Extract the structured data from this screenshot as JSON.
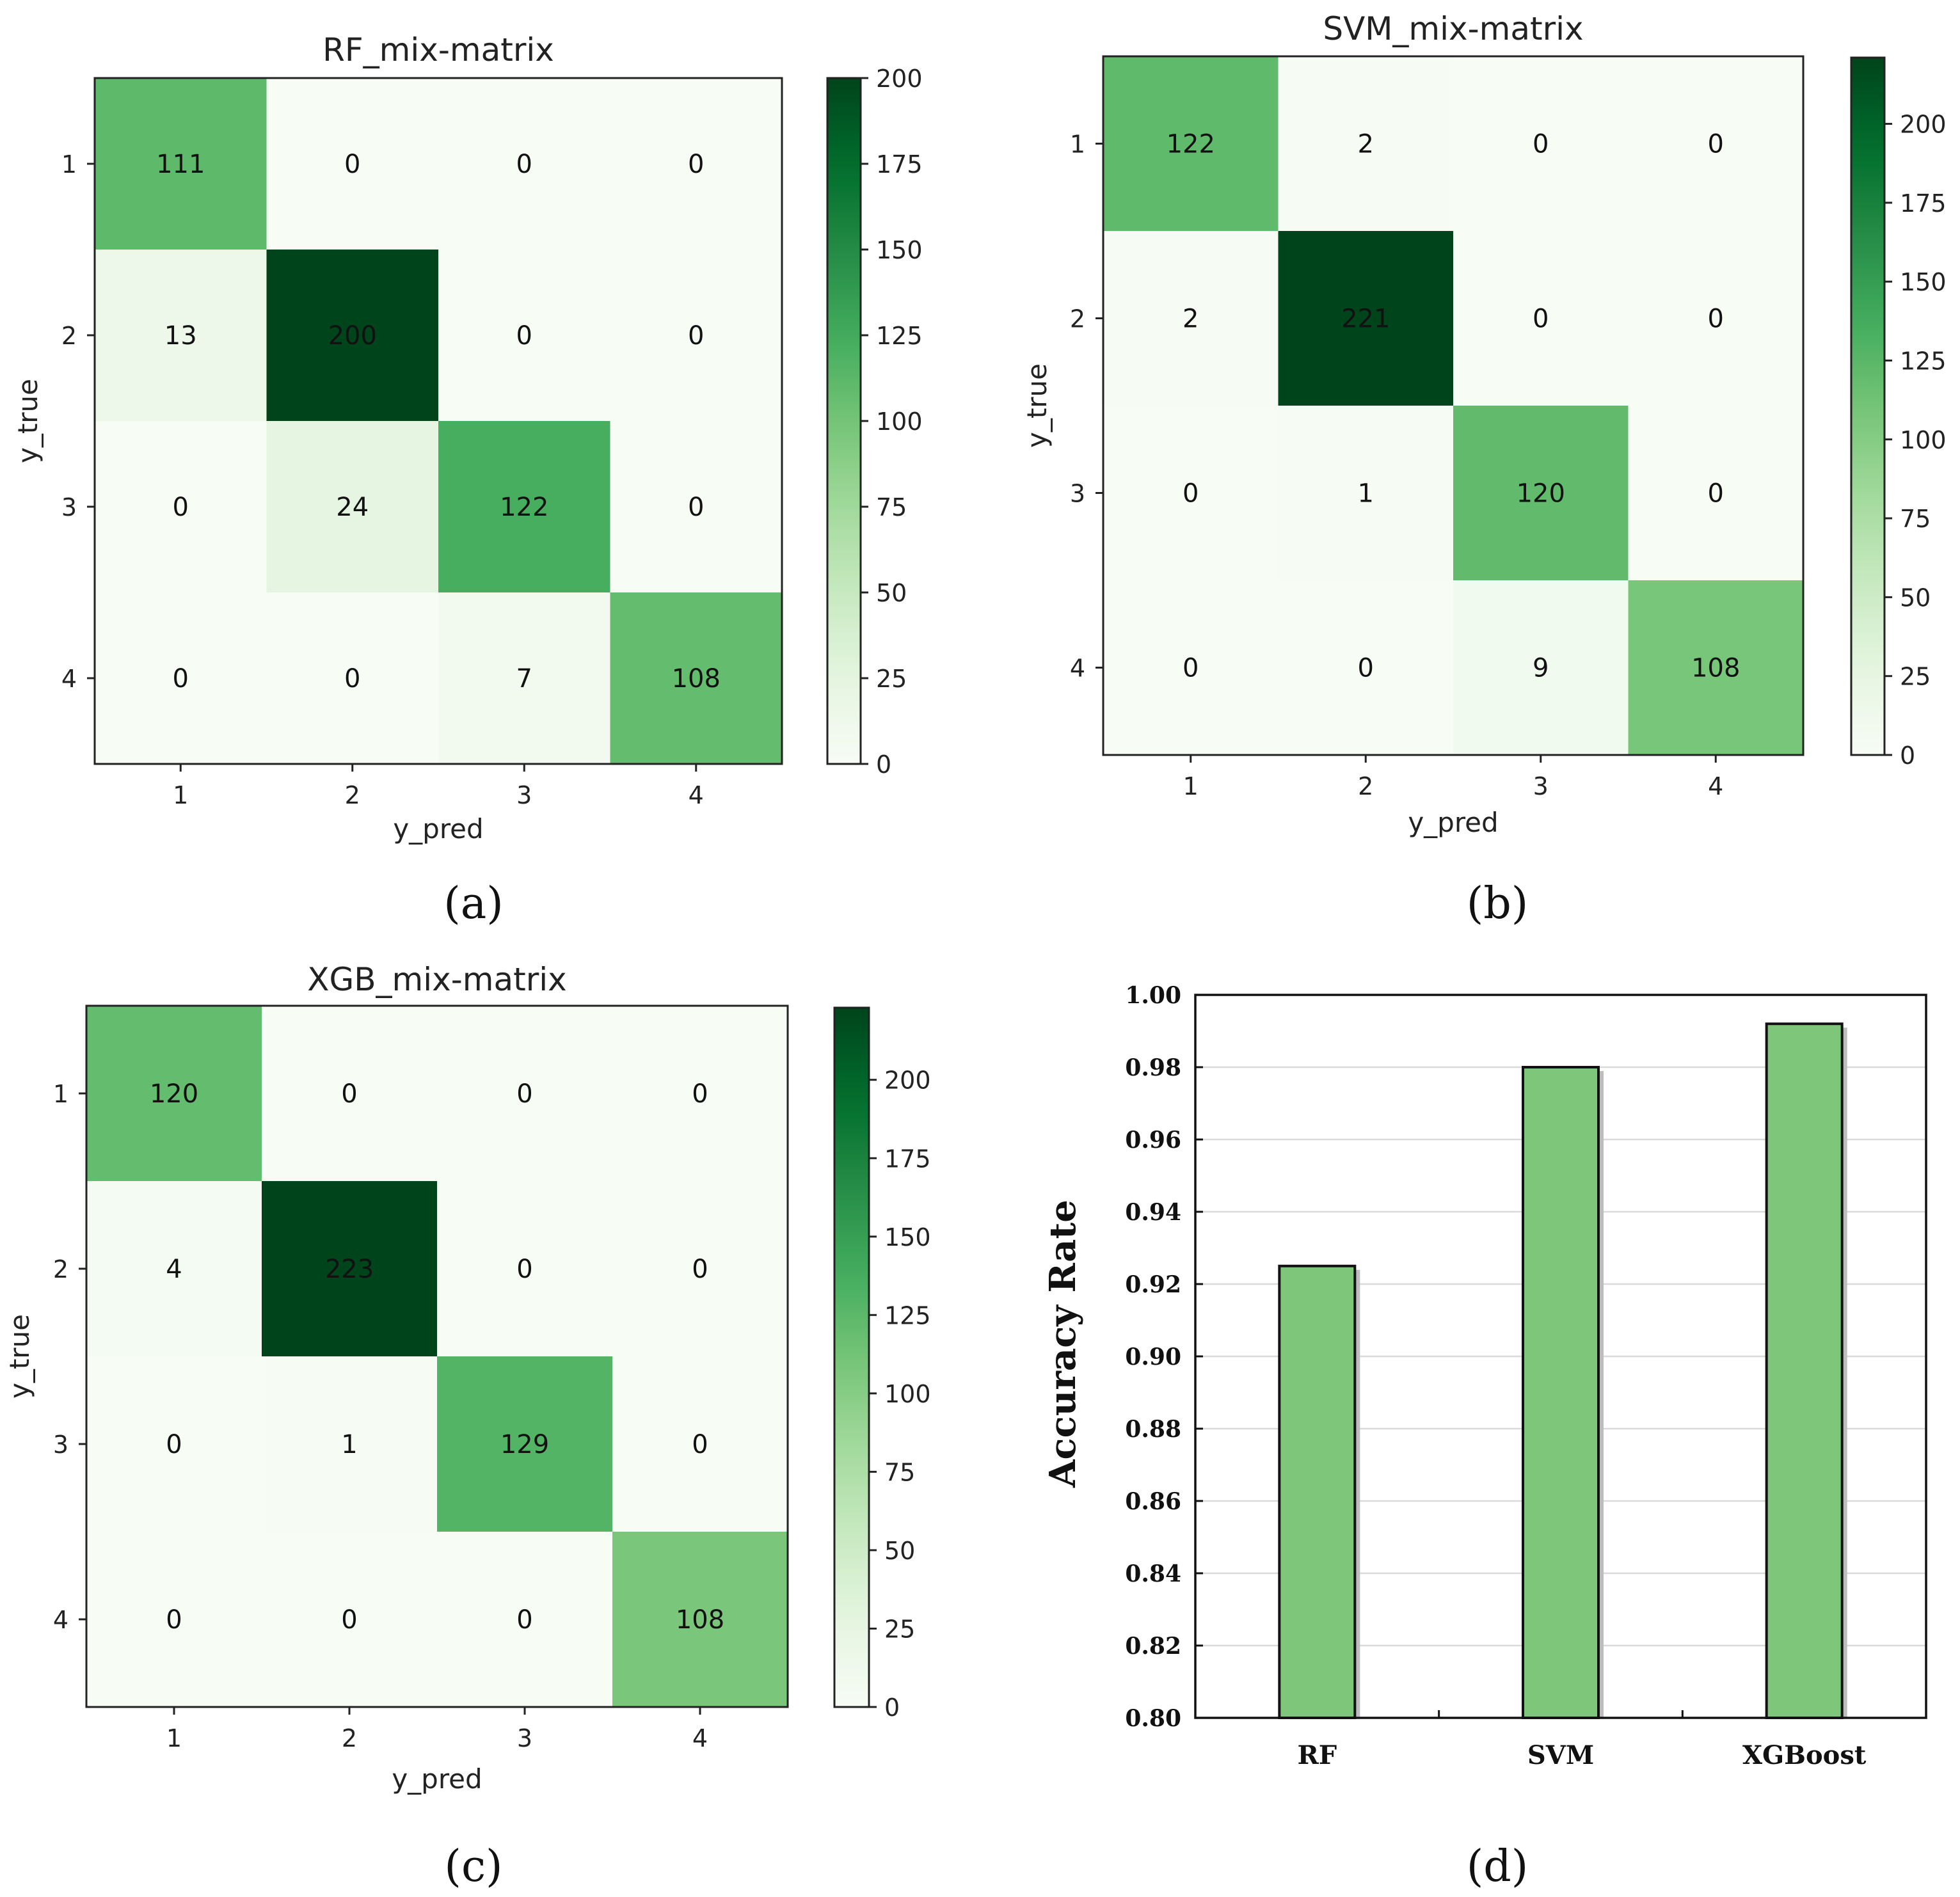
{
  "chart_data": [
    {
      "type": "heatmap",
      "title": "RF_mix-matrix",
      "xlabel": "y_pred",
      "ylabel": "y_true",
      "categories": [
        "1",
        "2",
        "3",
        "4"
      ],
      "matrix": [
        [
          111,
          0,
          0,
          0
        ],
        [
          13,
          200,
          0,
          0
        ],
        [
          0,
          24,
          122,
          0
        ],
        [
          0,
          0,
          7,
          108
        ]
      ],
      "color_min": 0,
      "color_max": 200,
      "colorbar_ticks": [
        0,
        25,
        50,
        75,
        100,
        125,
        150,
        175,
        200
      ],
      "caption": "(a)"
    },
    {
      "type": "heatmap",
      "title": "SVM_mix-matrix",
      "xlabel": "y_pred",
      "ylabel": "y_true",
      "categories": [
        "1",
        "2",
        "3",
        "4"
      ],
      "matrix": [
        [
          122,
          2,
          0,
          0
        ],
        [
          2,
          221,
          0,
          0
        ],
        [
          0,
          1,
          120,
          0
        ],
        [
          0,
          0,
          9,
          108
        ]
      ],
      "color_min": 0,
      "color_max": 221,
      "colorbar_ticks": [
        0,
        25,
        50,
        75,
        100,
        125,
        150,
        175,
        200
      ],
      "caption": "(b)"
    },
    {
      "type": "heatmap",
      "title": "XGB_mix-matrix",
      "xlabel": "y_pred",
      "ylabel": "y_true",
      "categories": [
        "1",
        "2",
        "3",
        "4"
      ],
      "matrix": [
        [
          120,
          0,
          0,
          0
        ],
        [
          4,
          223,
          0,
          0
        ],
        [
          0,
          1,
          129,
          0
        ],
        [
          0,
          0,
          0,
          108
        ]
      ],
      "color_min": 0,
      "color_max": 223,
      "colorbar_ticks": [
        0,
        25,
        50,
        75,
        100,
        125,
        150,
        175,
        200
      ],
      "caption": "(c)"
    },
    {
      "type": "bar",
      "title": "",
      "xlabel": "",
      "ylabel": "Accuracy  Rate",
      "categories": [
        "RF",
        "SVM",
        "XGBoost"
      ],
      "values": [
        0.925,
        0.98,
        0.992
      ],
      "ylim": [
        0.8,
        1.0
      ],
      "yticks": [
        "0.80",
        "0.82",
        "0.84",
        "0.86",
        "0.88",
        "0.90",
        "0.92",
        "0.94",
        "0.96",
        "0.98",
        "1.00"
      ],
      "grid": true,
      "bar_color": "#7dc67a",
      "caption": "(d)"
    }
  ],
  "colors": {
    "cmap_low": "#f7fcf5",
    "cmap_25": "#e5f5e0",
    "cmap_50": "#c7e9c0",
    "cmap_75": "#a1d99b",
    "cmap_100": "#74c476",
    "cmap_125": "#41ab5d",
    "cmap_150": "#238b45",
    "cmap_175": "#006d2c",
    "cmap_high": "#00441b",
    "bar_fill": "#7dc67a",
    "grid": "#d9d9d9"
  }
}
